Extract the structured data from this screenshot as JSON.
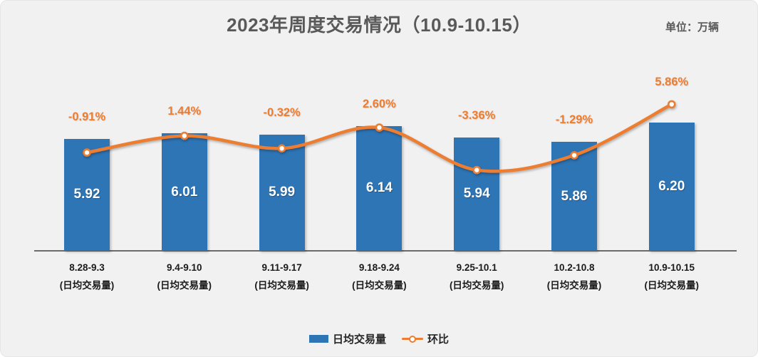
{
  "header": {
    "title": "2023年周度交易情况（10.9-10.15）",
    "unit_label": "单位：万辆"
  },
  "colors": {
    "bar": "#2E75B6",
    "line": "#ED7D31",
    "background": "#F1F1F1",
    "title_text": "#595959",
    "axis_line": "#6b6b6b",
    "bar_label_text": "#FFFFFF",
    "x_label_text": "#1a1a1a"
  },
  "chart_data": {
    "type": "bar",
    "subtype": "bar-line-combo",
    "title": "2023年周度交易情况（10.9-10.15）",
    "unit": "万辆",
    "grid": false,
    "legend_position": "bottom",
    "categories": [
      "8.28-9.3",
      "9.4-9.10",
      "9.11-9.17",
      "9.18-9.24",
      "9.25-10.1",
      "10.2-10.8",
      "10.9-10.15"
    ],
    "category_sublabel": "(日均交易量)",
    "series": [
      {
        "name": "日均交易量",
        "type": "bar",
        "values": [
          5.92,
          6.01,
          5.99,
          6.14,
          5.94,
          5.86,
          6.2
        ],
        "value_labels": [
          "5.92",
          "6.01",
          "5.99",
          "6.14",
          "5.94",
          "5.86",
          "6.20"
        ]
      },
      {
        "name": "环比",
        "type": "line",
        "values_percent": [
          -0.91,
          1.44,
          -0.32,
          2.6,
          -3.36,
          -1.29,
          5.86
        ],
        "point_labels": [
          "-0.91%",
          "1.44%",
          "-0.32%",
          "2.60%",
          "-3.36%",
          "-1.29%",
          "5.86%"
        ]
      }
    ]
  },
  "legend": {
    "bar_label": "日均交易量",
    "line_label": "环比"
  }
}
